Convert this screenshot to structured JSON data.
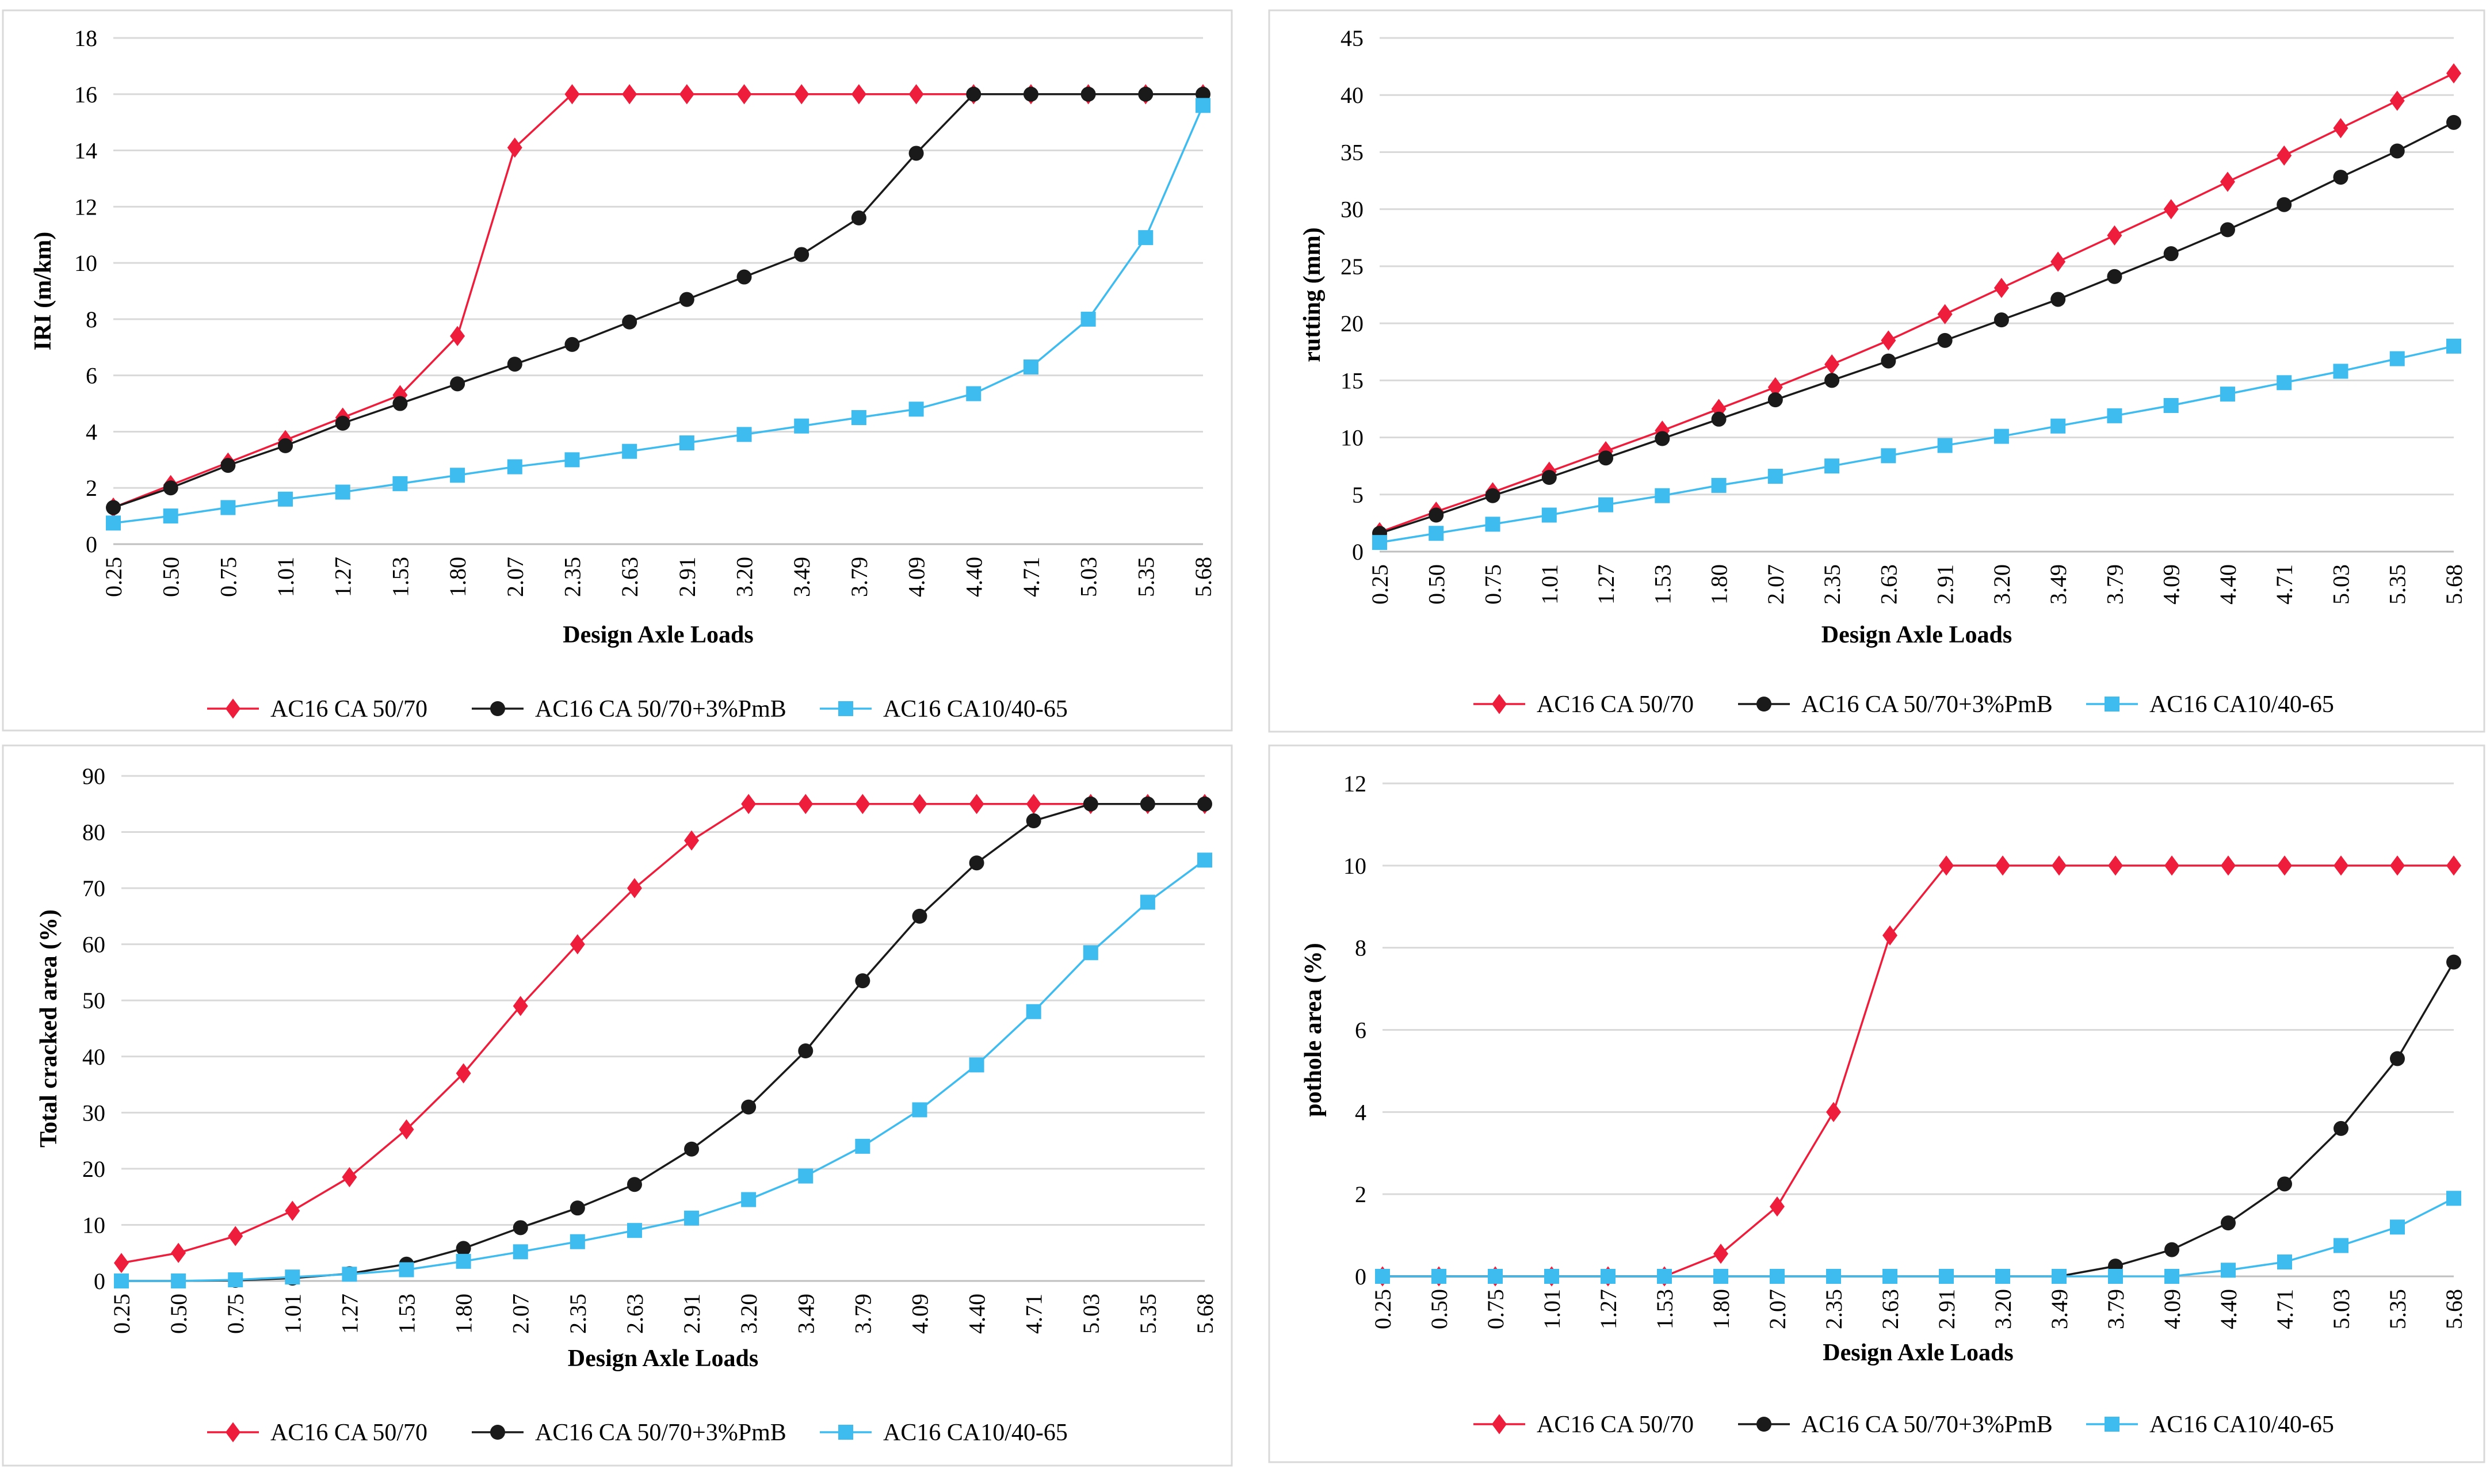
{
  "series_styles": [
    {
      "color": "#ee1d3b",
      "marker": "diamond"
    },
    {
      "color": "#1a1a1a",
      "marker": "circle"
    },
    {
      "color": "#3ebbef",
      "marker": "square"
    }
  ],
  "chart_data": [
    {
      "type": "line",
      "categories": [
        "0.25",
        "0.50",
        "0.75",
        "1.01",
        "1.27",
        "1.53",
        "1.80",
        "2.07",
        "2.35",
        "2.63",
        "2.91",
        "3.20",
        "3.49",
        "3.79",
        "4.09",
        "4.40",
        "4.71",
        "5.03",
        "5.35",
        "5.68"
      ],
      "xlabel": "Design Axle Loads",
      "ylabel": "IRI (m/km)",
      "ylim": [
        0,
        18
      ],
      "yticks": [
        "0",
        "2",
        "4",
        "6",
        "8",
        "10",
        "12",
        "14",
        "16",
        "18"
      ],
      "grid": true,
      "legend": "bottom",
      "series": [
        {
          "name": "AC16 CA 50/70",
          "values": [
            1.3,
            2.1,
            2.9,
            3.7,
            4.5,
            5.3,
            7.4,
            14.1,
            16,
            16,
            16,
            16,
            16,
            16,
            16,
            16,
            16,
            16,
            16,
            16
          ]
        },
        {
          "name": "AC16 CA 50/70+3%PmB",
          "values": [
            1.3,
            2.0,
            2.8,
            3.5,
            4.3,
            5.0,
            5.7,
            6.4,
            7.1,
            7.9,
            8.7,
            9.5,
            10.3,
            11.6,
            13.9,
            16,
            16,
            16,
            16,
            16
          ]
        },
        {
          "name": "AC16 CA10/40-65",
          "values": [
            0.75,
            1.0,
            1.3,
            1.6,
            1.85,
            2.15,
            2.45,
            2.75,
            3.0,
            3.3,
            3.6,
            3.9,
            4.2,
            4.5,
            4.8,
            5.35,
            6.3,
            8.0,
            10.9,
            15.6
          ]
        }
      ]
    },
    {
      "type": "line",
      "categories": [
        "0.25",
        "0.50",
        "0.75",
        "1.01",
        "1.27",
        "1.53",
        "1.80",
        "2.07",
        "2.35",
        "2.63",
        "2.91",
        "3.20",
        "3.49",
        "3.79",
        "4.09",
        "4.40",
        "4.71",
        "5.03",
        "5.35",
        "5.68"
      ],
      "xlabel": "Design Axle Loads",
      "ylabel": "rutting (mm)",
      "ylim": [
        0,
        45
      ],
      "yticks": [
        "0",
        "5",
        "10",
        "15",
        "20",
        "25",
        "30",
        "35",
        "40",
        "45"
      ],
      "grid": true,
      "legend": "bottom",
      "series": [
        {
          "name": "AC16 CA 50/70",
          "values": [
            1.7,
            3.5,
            5.2,
            7.0,
            8.8,
            10.6,
            12.5,
            14.4,
            16.4,
            18.5,
            20.8,
            23.1,
            25.4,
            27.7,
            30.0,
            32.4,
            34.7,
            37.1,
            39.5,
            41.9
          ]
        },
        {
          "name": "AC16 CA 50/70+3%PmB",
          "values": [
            1.6,
            3.2,
            4.9,
            6.5,
            8.2,
            9.9,
            11.6,
            13.3,
            15.0,
            16.7,
            18.5,
            20.3,
            22.1,
            24.1,
            26.1,
            28.2,
            30.4,
            32.8,
            35.1,
            37.6
          ]
        },
        {
          "name": "AC16 CA10/40-65",
          "values": [
            0.8,
            1.6,
            2.4,
            3.2,
            4.1,
            4.9,
            5.8,
            6.6,
            7.5,
            8.4,
            9.3,
            10.1,
            11.0,
            11.9,
            12.8,
            13.8,
            14.8,
            15.8,
            16.9,
            18.0
          ]
        }
      ]
    },
    {
      "type": "line",
      "categories": [
        "0.25",
        "0.50",
        "0.75",
        "1.01",
        "1.27",
        "1.53",
        "1.80",
        "2.07",
        "2.35",
        "2.63",
        "2.91",
        "3.20",
        "3.49",
        "3.79",
        "4.09",
        "4.40",
        "4.71",
        "5.03",
        "5.35",
        "5.68"
      ],
      "xlabel": "Design Axle Loads",
      "ylabel": "Total cracked area (%)",
      "ylim": [
        0,
        90
      ],
      "yticks": [
        "0",
        "10",
        "20",
        "30",
        "40",
        "50",
        "60",
        "70",
        "80",
        "90"
      ],
      "grid": true,
      "legend": "bottom",
      "series": [
        {
          "name": "AC16 CA 50/70",
          "values": [
            3.2,
            5.0,
            8.0,
            12.5,
            18.5,
            27.0,
            37.0,
            49.0,
            60.0,
            70.0,
            78.5,
            85,
            85,
            85,
            85,
            85,
            85,
            85,
            85,
            85
          ]
        },
        {
          "name": "AC16 CA 50/70+3%PmB",
          "values": [
            0,
            0,
            0.1,
            0.5,
            1.3,
            3.0,
            5.8,
            9.5,
            13.0,
            17.2,
            23.5,
            31.0,
            41.0,
            53.5,
            65.0,
            74.5,
            82.0,
            85,
            85,
            85
          ]
        },
        {
          "name": "AC16 CA10/40-65",
          "values": [
            0,
            0,
            0.2,
            0.7,
            1.2,
            2.0,
            3.5,
            5.2,
            7.0,
            9.0,
            11.2,
            14.5,
            18.7,
            24.0,
            30.5,
            38.5,
            48.0,
            58.5,
            67.5,
            75.0
          ]
        }
      ]
    },
    {
      "type": "line",
      "categories": [
        "0.25",
        "0.50",
        "0.75",
        "1.01",
        "1.27",
        "1.53",
        "1.80",
        "2.07",
        "2.35",
        "2.63",
        "2.91",
        "3.20",
        "3.49",
        "3.79",
        "4.09",
        "4.40",
        "4.71",
        "5.03",
        "5.35",
        "5.68"
      ],
      "xlabel": "Design Axle Loads",
      "ylabel": "pothole area (%)",
      "ylim": [
        0,
        12
      ],
      "yticks": [
        "0",
        "2",
        "4",
        "6",
        "8",
        "10",
        "12"
      ],
      "grid": true,
      "legend": "bottom",
      "series": [
        {
          "name": "AC16 CA 50/70",
          "values": [
            0,
            0,
            0,
            0,
            0,
            0,
            0.55,
            1.7,
            4.0,
            8.3,
            10,
            10,
            10,
            10,
            10,
            10,
            10,
            10,
            10,
            10
          ]
        },
        {
          "name": "AC16 CA 50/70+3%PmB",
          "values": [
            0,
            0,
            0,
            0,
            0,
            0,
            0,
            0,
            0,
            0,
            0,
            0,
            0,
            0.25,
            0.65,
            1.3,
            2.25,
            3.6,
            5.3,
            7.65
          ]
        },
        {
          "name": "AC16 CA10/40-65",
          "values": [
            0,
            0,
            0,
            0,
            0,
            0,
            0,
            0,
            0,
            0,
            0,
            0,
            0,
            0,
            0,
            0.15,
            0.35,
            0.75,
            1.2,
            1.9
          ]
        }
      ]
    }
  ]
}
